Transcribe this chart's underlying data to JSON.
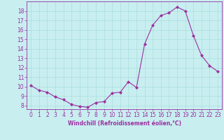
{
  "x": [
    0,
    1,
    2,
    3,
    4,
    5,
    6,
    7,
    8,
    9,
    10,
    11,
    12,
    13,
    14,
    15,
    16,
    17,
    18,
    19,
    20,
    21,
    22,
    23
  ],
  "y": [
    10.1,
    9.6,
    9.4,
    8.9,
    8.6,
    8.1,
    7.9,
    7.8,
    8.3,
    8.4,
    9.3,
    9.4,
    10.5,
    9.9,
    14.5,
    16.5,
    17.5,
    17.8,
    18.4,
    18.0,
    15.4,
    13.3,
    12.2,
    11.6
  ],
  "line_color": "#9b30a0",
  "marker": "D",
  "marker_size": 2.0,
  "bg_color": "#c8eef0",
  "grid_color": "#aadddd",
  "xlabel": "Windchill (Refroidissement éolien,°C)",
  "xlabel_color": "#9b30a0",
  "tick_color": "#9b30a0",
  "spine_color": "#9b30a0",
  "ylim": [
    7.6,
    19.0
  ],
  "xlim": [
    -0.5,
    23.5
  ],
  "yticks": [
    8,
    9,
    10,
    11,
    12,
    13,
    14,
    15,
    16,
    17,
    18
  ],
  "xticks": [
    0,
    1,
    2,
    3,
    4,
    5,
    6,
    7,
    8,
    9,
    10,
    11,
    12,
    13,
    14,
    15,
    16,
    17,
    18,
    19,
    20,
    21,
    22,
    23
  ],
  "tick_fontsize": 5.5,
  "xlabel_fontsize": 5.5
}
